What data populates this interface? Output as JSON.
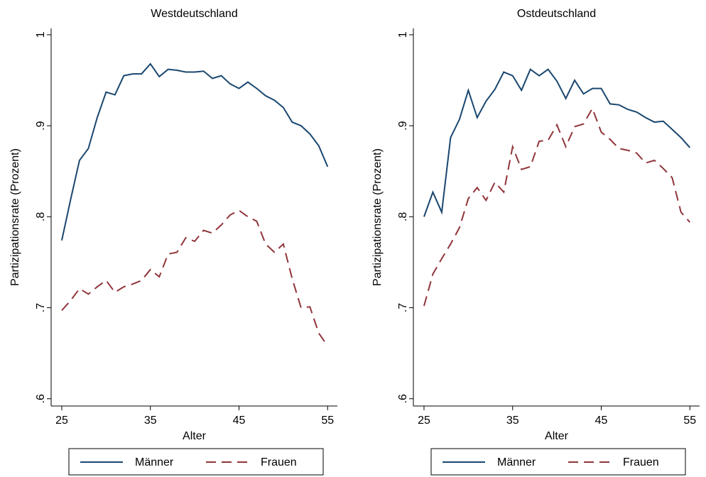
{
  "chart_data": [
    {
      "type": "line",
      "title": "Westdeutschland",
      "x_label": "Alter",
      "y_label": "Partizipationsrate (Prozent)",
      "x": [
        25,
        26,
        27,
        28,
        29,
        30,
        31,
        32,
        33,
        34,
        35,
        36,
        37,
        38,
        39,
        40,
        41,
        42,
        43,
        44,
        45,
        46,
        47,
        48,
        49,
        50,
        51,
        52,
        53,
        54,
        55
      ],
      "xlim": [
        23.8,
        56.1
      ],
      "xticks": [
        25,
        35,
        45,
        55
      ],
      "ylim": [
        0.592,
        1.007
      ],
      "yticks": [
        {
          "value": 0.6,
          "label": ".6"
        },
        {
          "value": 0.7,
          "label": ".7"
        },
        {
          "value": 0.8,
          "label": ".8"
        },
        {
          "value": 0.9,
          "label": ".9"
        },
        1
      ],
      "legend": "bottom",
      "series": [
        {
          "name": "Männer",
          "color": "#1a476f",
          "line_style": "solid",
          "values": [
            0.774,
            0.819,
            0.862,
            0.875,
            0.909,
            0.937,
            0.934,
            0.955,
            0.957,
            0.957,
            0.968,
            0.954,
            0.962,
            0.961,
            0.959,
            0.959,
            0.96,
            0.952,
            0.955,
            0.946,
            0.941,
            0.948,
            0.941,
            0.933,
            0.928,
            0.92,
            0.904,
            0.9,
            0.891,
            0.878,
            0.855
          ]
        },
        {
          "name": "Frauen",
          "color": "#90353b",
          "line_style": "dashed",
          "values": [
            0.697,
            0.708,
            0.721,
            0.715,
            0.723,
            0.73,
            0.717,
            0.723,
            0.726,
            0.73,
            0.742,
            0.734,
            0.759,
            0.761,
            0.777,
            0.773,
            0.785,
            0.782,
            0.791,
            0.802,
            0.807,
            0.8,
            0.795,
            0.77,
            0.761,
            0.77,
            0.732,
            0.7,
            0.701,
            0.672,
            0.658
          ]
        }
      ]
    },
    {
      "type": "line",
      "title": "Ostdeutschland",
      "x_label": "Alter",
      "y_label": "Partizipationsrate (Prozent)",
      "x": [
        25,
        26,
        27,
        28,
        29,
        30,
        31,
        32,
        33,
        34,
        35,
        36,
        37,
        38,
        39,
        40,
        41,
        42,
        43,
        44,
        45,
        46,
        47,
        48,
        49,
        50,
        51,
        52,
        53,
        54,
        55
      ],
      "xlim": [
        23.8,
        56.1
      ],
      "xticks": [
        25,
        35,
        45,
        55
      ],
      "ylim": [
        0.592,
        1.007
      ],
      "yticks": [
        {
          "value": 0.6,
          "label": ".6"
        },
        {
          "value": 0.7,
          "label": ".7"
        },
        {
          "value": 0.8,
          "label": ".8"
        },
        {
          "value": 0.9,
          "label": ".9"
        },
        1
      ],
      "legend": "bottom",
      "series": [
        {
          "name": "Männer",
          "color": "#1a476f",
          "line_style": "solid",
          "values": [
            0.8,
            0.827,
            0.805,
            0.887,
            0.907,
            0.939,
            0.909,
            0.927,
            0.94,
            0.959,
            0.955,
            0.939,
            0.962,
            0.955,
            0.962,
            0.949,
            0.93,
            0.95,
            0.935,
            0.941,
            0.941,
            0.924,
            0.923,
            0.918,
            0.915,
            0.909,
            0.904,
            0.905,
            0.896,
            0.887,
            0.876
          ]
        },
        {
          "name": "Frauen",
          "color": "#90353b",
          "line_style": "dashed",
          "values": [
            0.702,
            0.737,
            0.754,
            0.77,
            0.788,
            0.82,
            0.832,
            0.818,
            0.838,
            0.827,
            0.877,
            0.852,
            0.855,
            0.883,
            0.884,
            0.901,
            0.877,
            0.899,
            0.902,
            0.919,
            0.893,
            0.885,
            0.875,
            0.873,
            0.87,
            0.859,
            0.862,
            0.853,
            0.843,
            0.805,
            0.794
          ]
        }
      ]
    }
  ]
}
